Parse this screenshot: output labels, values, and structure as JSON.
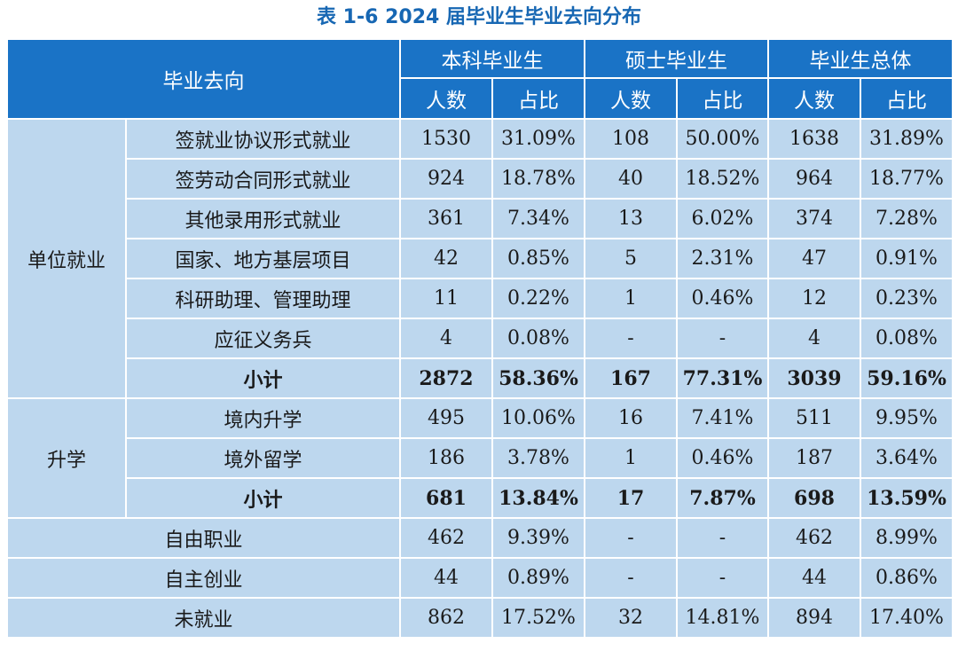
{
  "title": "表 1-6  2024 届毕业生毕业去向分布",
  "header": {
    "destination": "毕业去向",
    "groups": [
      "本科毕业生",
      "硕士毕业生",
      "毕业生总体"
    ],
    "count_label": "人数",
    "ratio_label": "占比"
  },
  "sections": {
    "employment": "单位就业",
    "further_study": "升学"
  },
  "rows": [
    {
      "label": "签就业协议形式就业",
      "values": [
        "1530",
        "31.09%",
        "108",
        "50.00%",
        "1638",
        "31.89%"
      ]
    },
    {
      "label": "签劳动合同形式就业",
      "values": [
        "924",
        "18.78%",
        "40",
        "18.52%",
        "964",
        "18.77%"
      ]
    },
    {
      "label": "其他录用形式就业",
      "values": [
        "361",
        "7.34%",
        "13",
        "6.02%",
        "374",
        "7.28%"
      ]
    },
    {
      "label": "国家、地方基层项目",
      "values": [
        "42",
        "0.85%",
        "5",
        "2.31%",
        "47",
        "0.91%"
      ]
    },
    {
      "label": "科研助理、管理助理",
      "values": [
        "11",
        "0.22%",
        "1",
        "0.46%",
        "12",
        "0.23%"
      ]
    },
    {
      "label": "应征义务兵",
      "values": [
        "4",
        "0.08%",
        "-",
        "-",
        "4",
        "0.08%"
      ]
    },
    {
      "label": "小计",
      "values": [
        "2872",
        "58.36%",
        "167",
        "77.31%",
        "3039",
        "59.16%"
      ]
    },
    {
      "label": "境内升学",
      "values": [
        "495",
        "10.06%",
        "16",
        "7.41%",
        "511",
        "9.95%"
      ]
    },
    {
      "label": "境外留学",
      "values": [
        "186",
        "3.78%",
        "1",
        "0.46%",
        "187",
        "3.64%"
      ]
    },
    {
      "label": "小计",
      "values": [
        "681",
        "13.84%",
        "17",
        "7.87%",
        "698",
        "13.59%"
      ]
    },
    {
      "label": "自由职业",
      "values": [
        "462",
        "9.39%",
        "-",
        "-",
        "462",
        "8.99%"
      ]
    },
    {
      "label": "自主创业",
      "values": [
        "44",
        "0.89%",
        "-",
        "-",
        "44",
        "0.86%"
      ]
    },
    {
      "label": "未就业",
      "values": [
        "862",
        "17.52%",
        "32",
        "14.81%",
        "894",
        "17.40%"
      ]
    }
  ]
}
